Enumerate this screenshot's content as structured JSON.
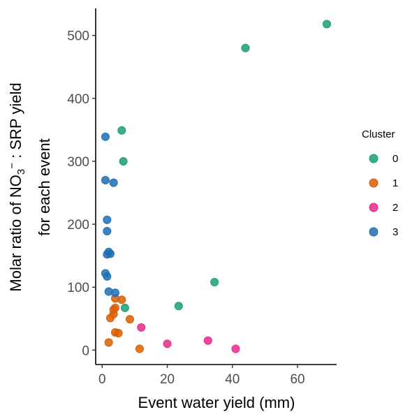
{
  "chart_data": {
    "type": "scatter",
    "xlabel": "Event water yield (mm)",
    "ylabel": {
      "line1_prefix": "Molar ratio of NO",
      "line1_sub": "3",
      "line1_sup": "−",
      "line1_suffix": " : SRP yield",
      "line2": "for each event"
    },
    "xlim": [
      -2,
      72
    ],
    "ylim": [
      -23,
      543
    ],
    "x_ticks": [
      0,
      20,
      40,
      60
    ],
    "y_ticks": [
      0,
      100,
      200,
      300,
      400,
      500
    ],
    "grid": false,
    "legend": {
      "title": "Cluster",
      "position": "right"
    },
    "series": [
      {
        "name": "0",
        "color": "#1b9e77",
        "points": [
          {
            "x": 69,
            "y": 518
          },
          {
            "x": 44,
            "y": 480
          },
          {
            "x": 6,
            "y": 349
          },
          {
            "x": 6.5,
            "y": 300
          },
          {
            "x": 34.5,
            "y": 108
          },
          {
            "x": 23.5,
            "y": 70
          },
          {
            "x": 7,
            "y": 67
          }
        ]
      },
      {
        "name": "1",
        "color": "#d95f02",
        "points": [
          {
            "x": 4,
            "y": 82
          },
          {
            "x": 6,
            "y": 80
          },
          {
            "x": 4,
            "y": 67
          },
          {
            "x": 3.5,
            "y": 64
          },
          {
            "x": 3.5,
            "y": 57
          },
          {
            "x": 2.5,
            "y": 51
          },
          {
            "x": 8.5,
            "y": 49
          },
          {
            "x": 4,
            "y": 28
          },
          {
            "x": 5,
            "y": 27
          },
          {
            "x": 2,
            "y": 12
          },
          {
            "x": 11.5,
            "y": 2
          }
        ]
      },
      {
        "name": "2",
        "color": "#e7298a",
        "points": [
          {
            "x": 12,
            "y": 36
          },
          {
            "x": 32.5,
            "y": 15
          },
          {
            "x": 20,
            "y": 10
          },
          {
            "x": 41,
            "y": 2
          }
        ]
      },
      {
        "name": "3",
        "color": "#1f6fb4",
        "points": [
          {
            "x": 1,
            "y": 339
          },
          {
            "x": 1,
            "y": 270
          },
          {
            "x": 3.5,
            "y": 266
          },
          {
            "x": 1.5,
            "y": 207
          },
          {
            "x": 1.5,
            "y": 189
          },
          {
            "x": 2,
            "y": 156
          },
          {
            "x": 2.5,
            "y": 153
          },
          {
            "x": 1.5,
            "y": 152
          },
          {
            "x": 1,
            "y": 122
          },
          {
            "x": 1.5,
            "y": 117
          },
          {
            "x": 2,
            "y": 93
          },
          {
            "x": 4,
            "y": 91
          }
        ]
      }
    ]
  }
}
